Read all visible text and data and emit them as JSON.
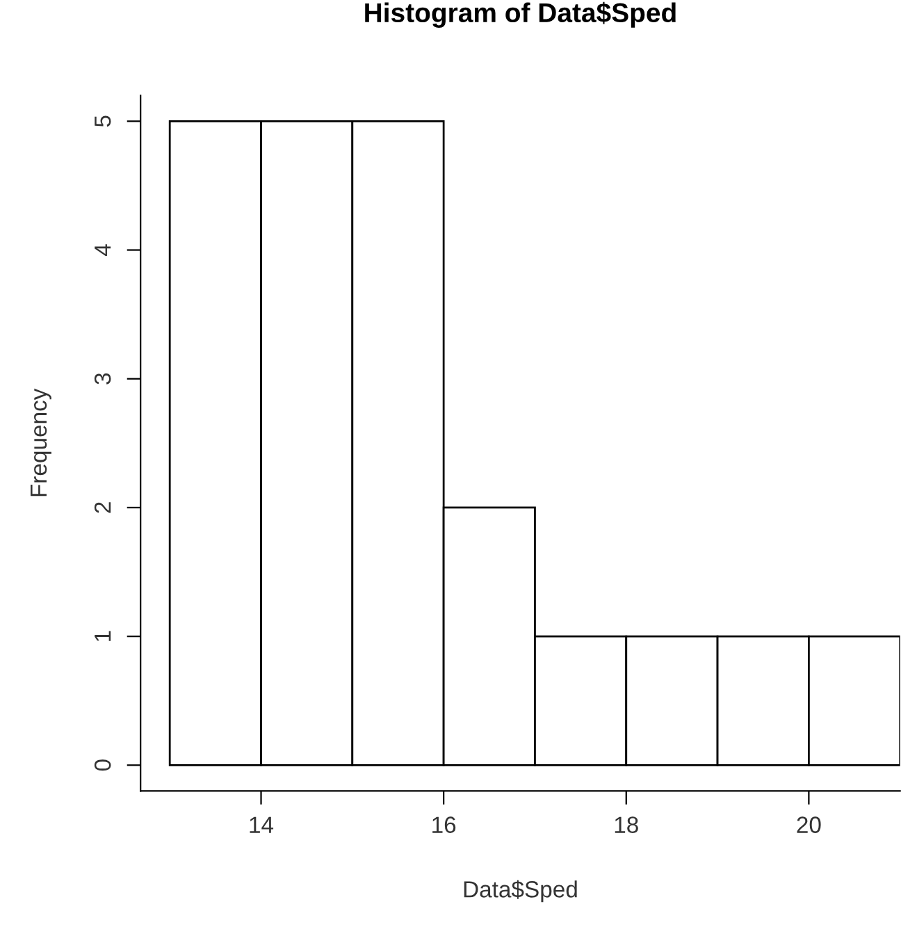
{
  "chart_data": {
    "type": "histogram",
    "title": "Histogram of Data$Sped",
    "xlabel": "Data$Sped",
    "ylabel": "Frequency",
    "bins": [
      13,
      14,
      15,
      16,
      17,
      18,
      19,
      20,
      21
    ],
    "values": [
      5,
      5,
      5,
      2,
      1,
      1,
      1,
      1
    ],
    "color": "#ffffff",
    "xlim": [
      12.68,
      21.0
    ],
    "ylim": [
      -0.2,
      5.2
    ],
    "xticks": [
      14,
      16,
      18,
      20
    ],
    "yticks": [
      0,
      1,
      2,
      3,
      4,
      5
    ]
  }
}
